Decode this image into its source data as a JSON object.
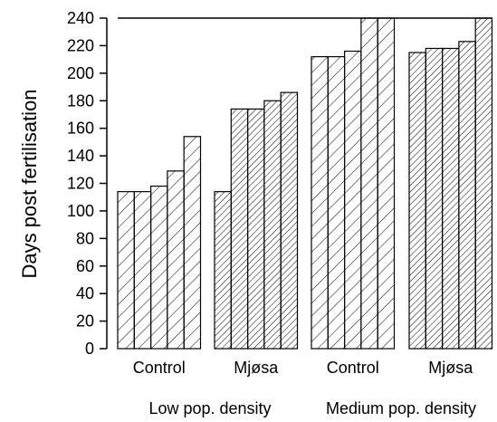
{
  "chart_data": {
    "type": "bar",
    "ylabel": "Days post fertilisation",
    "ylim": [
      0,
      240
    ],
    "yticks": [
      0,
      20,
      40,
      60,
      80,
      100,
      120,
      140,
      160,
      180,
      200,
      220,
      240
    ],
    "grid": false,
    "legend": "none",
    "groups": [
      {
        "label": "Control",
        "density": "Low pop. density",
        "hatch": "sparse",
        "values": [
          114,
          114,
          118,
          129,
          154
        ]
      },
      {
        "label": "Mjøsa",
        "density": "Low pop. density",
        "hatch": "dense",
        "values": [
          114,
          174,
          174,
          180,
          186
        ]
      },
      {
        "label": "Control",
        "density": "Medium pop. density",
        "hatch": "sparse",
        "values": [
          212,
          212,
          216,
          240,
          240
        ]
      },
      {
        "label": "Mjøsa",
        "density": "Medium pop. density",
        "hatch": "dense",
        "values": [
          215,
          218,
          218,
          223,
          240
        ]
      }
    ],
    "density_labels": [
      "Low pop. density",
      "Medium pop. density"
    ]
  },
  "colors": {
    "bar_stroke": "#000000",
    "hatch": "#000000",
    "background": "#ffffff"
  }
}
